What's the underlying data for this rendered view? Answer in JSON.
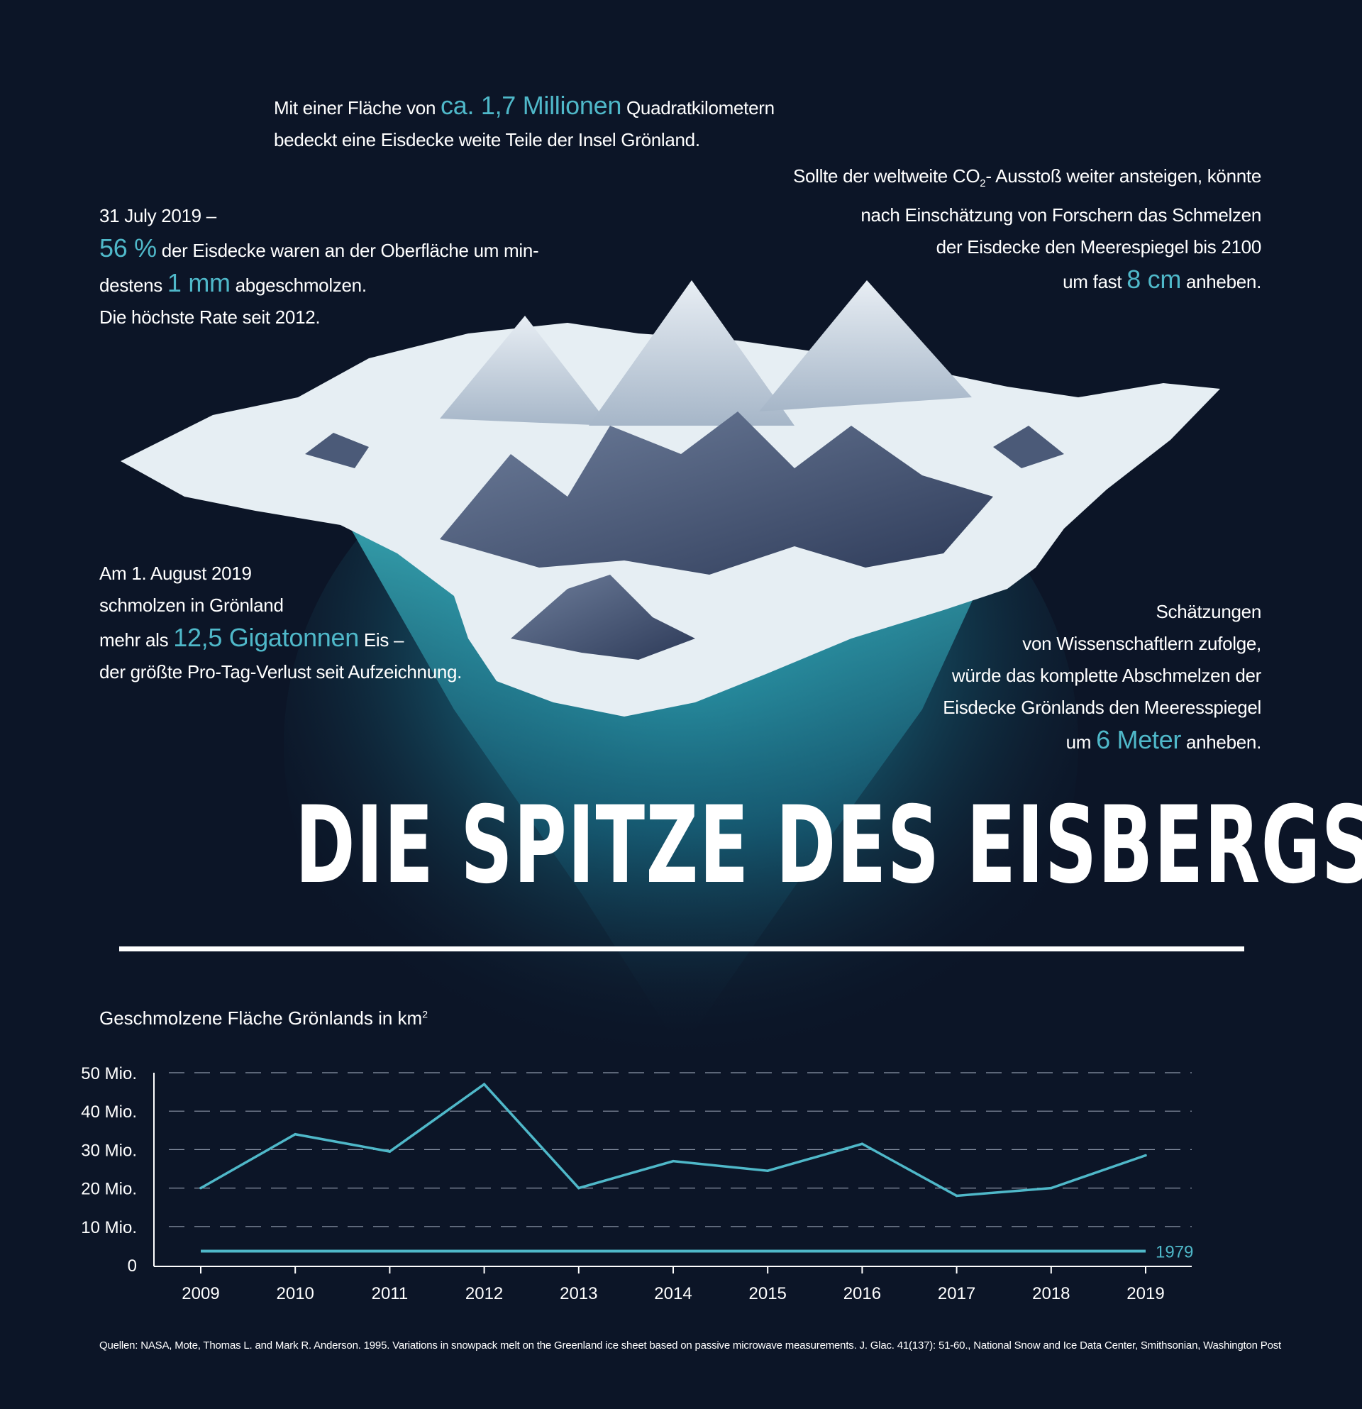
{
  "facts": {
    "area": {
      "pre": "Mit einer Fläche von ",
      "highlight": "ca. 1,7 Millionen",
      "post": " Quadratkilometern",
      "line2": "bedeckt eine Eisdecke weite Teile der Insel Grönland."
    },
    "july": {
      "line1": "31 July  2019 –",
      "highlight1": "56 %",
      "line2_post": " der Eisdecke waren an der Oberfläche um min-",
      "line3_pre": "destens ",
      "highlight2": "1 mm",
      "line3_post": " abgeschmolzen.",
      "line4": "Die höchste Rate seit 2012."
    },
    "co2": {
      "line1_pre": "Sollte der weltweite CO",
      "line1_sub": "2",
      "line1_post": "- Ausstoß weiter ansteigen, könnte",
      "line2": "nach Einschätzung von Forschern das Schmelzen",
      "line3": "der Eisdecke den Meerespiegel bis 2100",
      "line4_pre": "um fast ",
      "highlight": "8 cm",
      "line4_post": " anheben."
    },
    "august": {
      "line1": "Am 1. August 2019",
      "line2": "schmolzen in Grönland",
      "line3_pre": "mehr als ",
      "highlight": "12,5 Gigatonnen",
      "line3_post": " Eis –",
      "line4": "der größte Pro-Tag-Verlust seit Aufzeichnung."
    },
    "estimates": {
      "line1": "Schätzungen",
      "line2": "von Wissenschaftlern zufolge,",
      "line3": "würde das komplette Abschmelzen der",
      "line4": "Eisdecke Grönlands den Meeresspiegel",
      "line5_pre": "um ",
      "highlight": "6 Meter",
      "line5_post": " anheben."
    }
  },
  "title": "DIE SPITZE DES EISBERGS",
  "chart_title": {
    "text": "Geschmolzene Fläche Grönlands in km",
    "sup": "2"
  },
  "sources": "Quellen: NASA, Mote, Thomas L. and Mark R. Anderson. 1995. Variations in snowpack melt on the Greenland ice sheet based on passive microwave measurements. J. Glac. 41(137): 51-60., National Snow and Ice Data Center, Smithsonian, Washington Post",
  "colors": {
    "background": "#0c1527",
    "accent": "#4fb8c9",
    "text": "#ffffff"
  },
  "chart_data": {
    "type": "line",
    "x": [
      "2009",
      "2010",
      "2011",
      "2012",
      "2013",
      "2014",
      "2015",
      "2016",
      "2017",
      "2018",
      "2019"
    ],
    "series": [
      {
        "values": [
          20,
          34,
          29.5,
          47,
          20,
          27,
          24.5,
          31.5,
          18,
          20,
          28.5
        ]
      }
    ],
    "reference_line": {
      "label": "1979",
      "value": 3.6
    },
    "y_ticks": [
      {
        "value": 0,
        "label": "0"
      },
      {
        "value": 10,
        "label": "10 Mio."
      },
      {
        "value": 20,
        "label": "20 Mio."
      },
      {
        "value": 30,
        "label": "30 Mio."
      },
      {
        "value": 40,
        "label": "40 Mio."
      },
      {
        "value": 50,
        "label": "50 Mio."
      }
    ],
    "ylim": [
      0,
      50
    ],
    "grid": true
  }
}
